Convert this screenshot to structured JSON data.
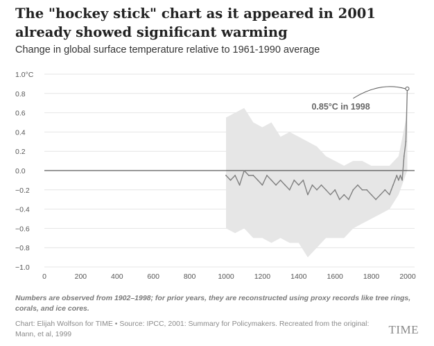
{
  "header": {
    "title": "The \"hockey stick\" chart as it appeared in 2001 already showed significant warming",
    "subtitle": "Change in global surface temperature relative to 1961-1990 average"
  },
  "footer": {
    "note": "Numbers are observed from 1902–1998; for prior years, they are reconstructed using proxy records like tree rings, corals, and ice cores.",
    "credit": "Chart: Elijah Wolfson for TIME • Source: IPCC, 2001: Summary for Policymakers. Recreated from the original: Mann, et al, 1999",
    "logo": "TIME"
  },
  "chart_data": {
    "type": "line",
    "title": "The \"hockey stick\" chart as it appeared in 2001 already showed significant warming",
    "subtitle": "Change in global surface temperature relative to 1961-1990 average",
    "xlabel": "",
    "ylabel": "",
    "xlim": [
      0,
      2000
    ],
    "ylim": [
      -1.0,
      1.0
    ],
    "x_ticks": [
      0,
      200,
      400,
      600,
      800,
      1000,
      1200,
      1400,
      1600,
      1800,
      2000
    ],
    "y_ticks": [
      -1.0,
      -0.8,
      -0.6,
      -0.4,
      -0.2,
      0.0,
      0.2,
      0.4,
      0.6,
      0.8,
      1.0
    ],
    "y_tick_labels": [
      "−1.0",
      "−0.8",
      "−0.6",
      "−0.4",
      "−0.2",
      "0.0",
      "0.2",
      "0.4",
      "0.6",
      "0.8",
      "1.0°C"
    ],
    "x_tick_labels": [
      "0",
      "200",
      "400",
      "600",
      "800",
      "1000",
      "1200",
      "1400",
      "1600",
      "1800",
      "2000"
    ],
    "grid": "horizontal",
    "colors": {
      "line": "#7f7f7f",
      "band": "#e6e6e6",
      "zero_line": "#333333",
      "grid": "#e4e4e4"
    },
    "series": [
      {
        "x": [
          1000,
          1025,
          1050,
          1075,
          1100,
          1125,
          1150,
          1175,
          1200,
          1225,
          1250,
          1275,
          1300,
          1325,
          1350,
          1375,
          1400,
          1425,
          1450,
          1475,
          1500,
          1525,
          1550,
          1575,
          1600,
          1625,
          1650,
          1675,
          1700,
          1725,
          1750,
          1775,
          1800,
          1825,
          1850,
          1875,
          1900,
          1910,
          1920,
          1930,
          1940,
          1950,
          1960,
          1970,
          1980,
          1990,
          1998
        ],
        "values": [
          -0.05,
          -0.1,
          -0.05,
          -0.15,
          0.0,
          -0.05,
          -0.05,
          -0.1,
          -0.15,
          -0.05,
          -0.1,
          -0.15,
          -0.1,
          -0.15,
          -0.2,
          -0.1,
          -0.15,
          -0.1,
          -0.25,
          -0.15,
          -0.2,
          -0.15,
          -0.2,
          -0.25,
          -0.2,
          -0.3,
          -0.25,
          -0.3,
          -0.2,
          -0.15,
          -0.2,
          -0.2,
          -0.25,
          -0.3,
          -0.25,
          -0.2,
          -0.25,
          -0.2,
          -0.15,
          -0.1,
          -0.05,
          -0.1,
          -0.05,
          -0.1,
          0.15,
          0.3,
          0.85
        ]
      },
      {
        "name": "uncertainty",
        "x": [
          1000,
          1050,
          1100,
          1150,
          1200,
          1250,
          1300,
          1350,
          1400,
          1450,
          1500,
          1550,
          1600,
          1650,
          1700,
          1750,
          1800,
          1850,
          1900,
          1950,
          1998
        ],
        "upper": [
          0.55,
          0.6,
          0.65,
          0.5,
          0.45,
          0.5,
          0.35,
          0.4,
          0.35,
          0.3,
          0.25,
          0.15,
          0.1,
          0.05,
          0.1,
          0.1,
          0.05,
          0.05,
          0.05,
          0.15,
          0.6
        ],
        "lower": [
          -0.6,
          -0.65,
          -0.6,
          -0.7,
          -0.7,
          -0.75,
          -0.7,
          -0.75,
          -0.75,
          -0.9,
          -0.8,
          -0.7,
          -0.7,
          -0.7,
          -0.6,
          -0.55,
          -0.5,
          -0.45,
          -0.4,
          -0.25,
          0.0
        ]
      }
    ],
    "annotations": [
      {
        "text": "0.85°C in 1998",
        "x": 1998,
        "y": 0.85
      }
    ]
  }
}
